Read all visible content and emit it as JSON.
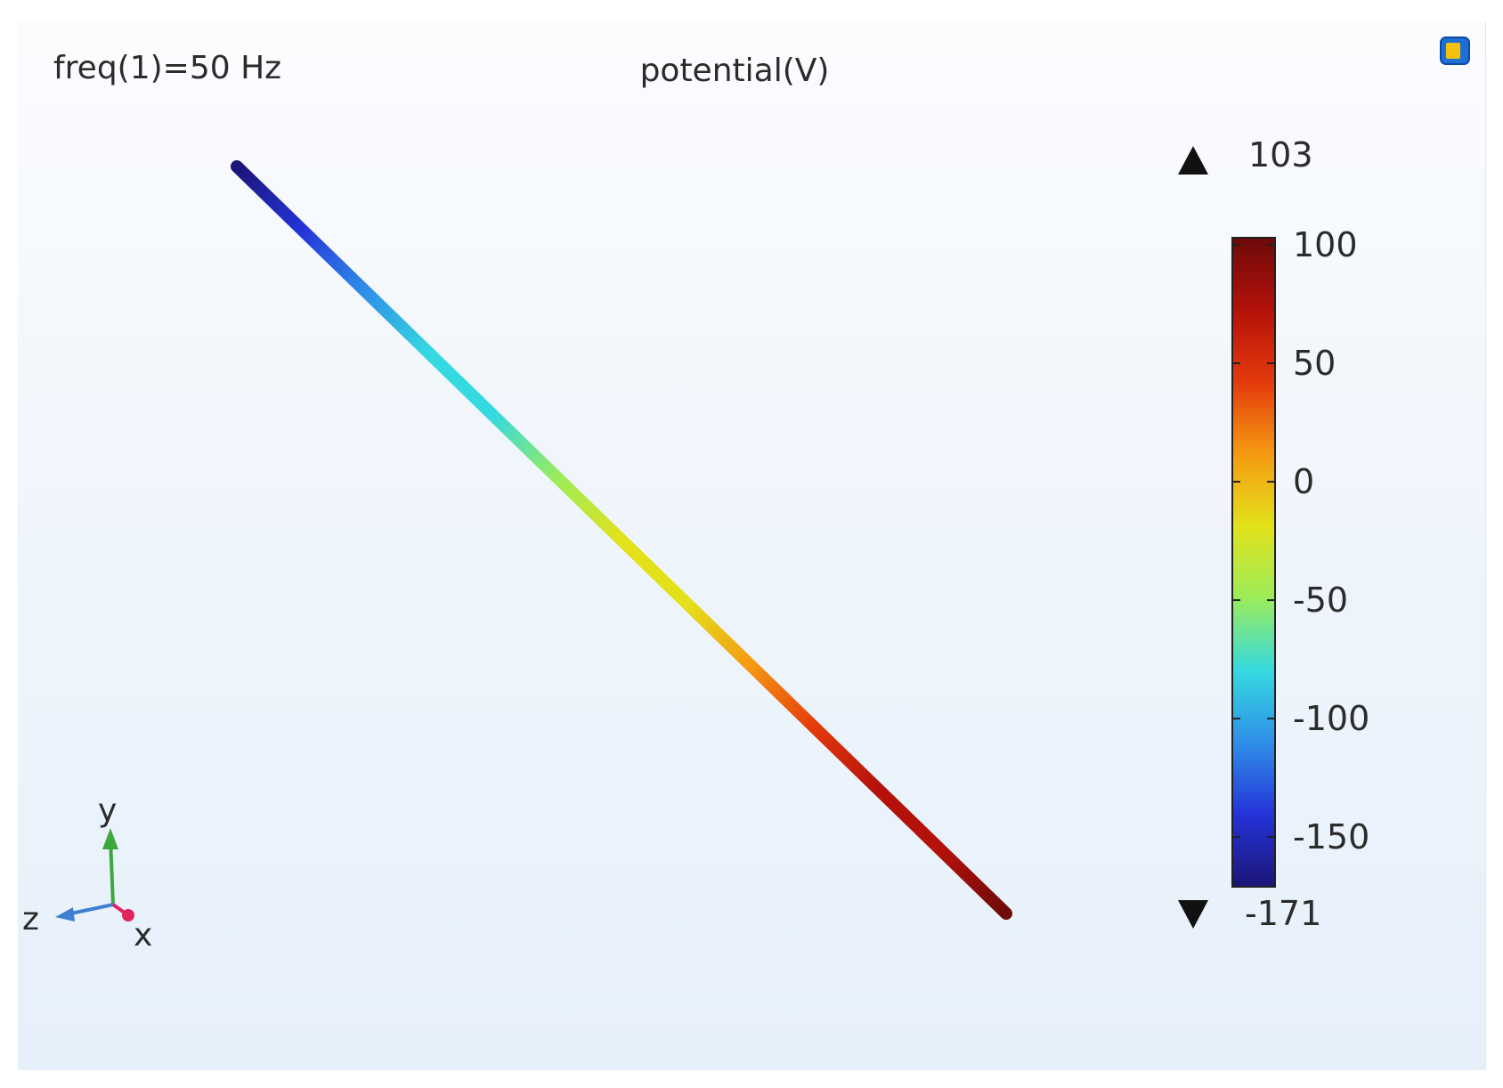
{
  "chart_data": {
    "type": "line",
    "title": "potential(V)",
    "subtitle": "freq(1)=50 Hz",
    "colorbar": {
      "ticks": [
        100,
        50,
        0,
        -50,
        -100,
        -150
      ],
      "tick_labels": [
        "100",
        "50",
        "0",
        "-50",
        "-100",
        "-150"
      ],
      "max_label": "103",
      "min_label": "-171",
      "range": [
        -171,
        103
      ],
      "colormap": "rainbow",
      "colors": [
        "#1c1577",
        "#2433d8",
        "#2f8fe8",
        "#35d9e0",
        "#9bec5a",
        "#e3e21a",
        "#f59a12",
        "#e43a0c",
        "#b4110a",
        "#6d0a0a"
      ]
    },
    "series": [
      {
        "values": [
          -160,
          103
        ]
      }
    ],
    "axes_triad": {
      "y": "y",
      "z": "z",
      "x": "x"
    }
  }
}
